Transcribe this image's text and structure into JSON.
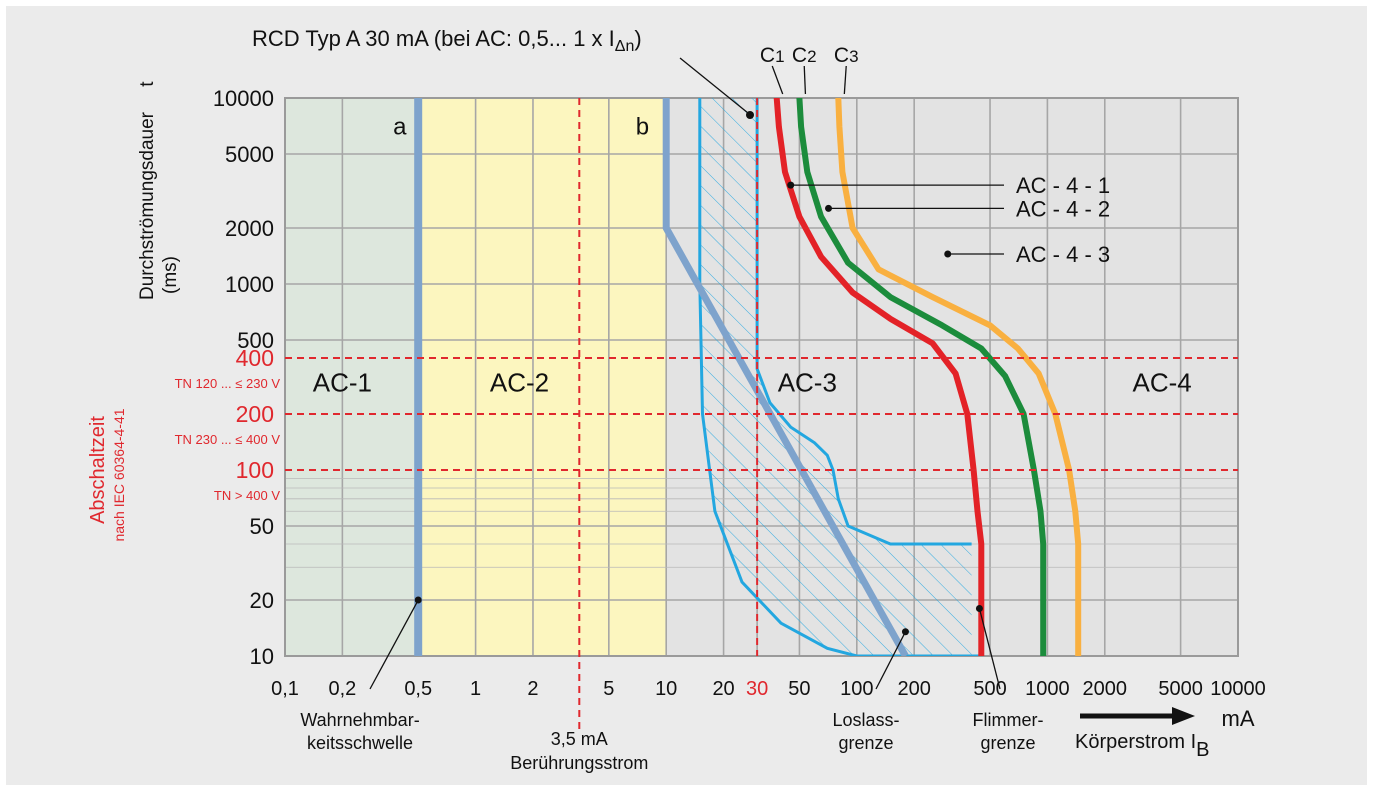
{
  "chart_data": {
    "type": "line",
    "title": "RCD Typ A 30 mA (bei AC: 0,5... 1 x I",
    "title_sub": "Δn",
    "title_end": ")",
    "ylabel_main": "Durchströmungsdauer",
    "ylabel_t": "t",
    "ylabel_unit": "(ms)",
    "xlabel_unit": "mA",
    "xlabel_main": "Körperstrom I",
    "xlabel_sub": "B",
    "x_scale": "log",
    "y_scale": "log",
    "xlim": [
      0.1,
      10000
    ],
    "ylim": [
      10,
      10000
    ],
    "x_ticks": [
      {
        "v": 0.1,
        "label": "0,1"
      },
      {
        "v": 0.2,
        "label": "0,2"
      },
      {
        "v": 0.5,
        "label": "0,5"
      },
      {
        "v": 1,
        "label": "1"
      },
      {
        "v": 2,
        "label": "2"
      },
      {
        "v": 5,
        "label": "5"
      },
      {
        "v": 10,
        "label": "10"
      },
      {
        "v": 20,
        "label": "20"
      },
      {
        "v": 30,
        "label": "30",
        "highlight": true
      },
      {
        "v": 50,
        "label": "50"
      },
      {
        "v": 100,
        "label": "100"
      },
      {
        "v": 200,
        "label": "200"
      },
      {
        "v": 500,
        "label": "500"
      },
      {
        "v": 1000,
        "label": "1000"
      },
      {
        "v": 2000,
        "label": "2000"
      },
      {
        "v": 5000,
        "label": "5000"
      },
      {
        "v": 10000,
        "label": "10000"
      }
    ],
    "y_ticks": [
      {
        "v": 10,
        "label": "10"
      },
      {
        "v": 20,
        "label": "20"
      },
      {
        "v": 50,
        "label": "50"
      },
      {
        "v": 100,
        "label": "100",
        "highlight": true
      },
      {
        "v": 200,
        "label": "200",
        "highlight": true
      },
      {
        "v": 400,
        "label": "400",
        "highlight": true
      },
      {
        "v": 500,
        "label": "500"
      },
      {
        "v": 1000,
        "label": "1000"
      },
      {
        "v": 2000,
        "label": "2000"
      },
      {
        "v": 5000,
        "label": "5000"
      },
      {
        "v": 10000,
        "label": "10000"
      }
    ],
    "regions": [
      {
        "label": "AC-1",
        "x_from": 0.1,
        "x_to": 0.5,
        "color": "#dde7dd",
        "label_x": 0.2,
        "label_y": 300
      },
      {
        "label": "AC-2",
        "x_from": 0.5,
        "x_to": 10,
        "color": "#fcf6bf",
        "label_x": 1.7,
        "label_y": 300
      },
      {
        "label": "AC-3",
        "label_x": 55,
        "label_y": 300
      },
      {
        "label": "AC-4",
        "label_x": 4000,
        "label_y": 300
      }
    ],
    "zone_letters": [
      {
        "label": "a",
        "x": 0.4,
        "y": 7200
      },
      {
        "label": "b",
        "x": 7.5,
        "y": 7200
      }
    ],
    "colors": {
      "boundary": "#7ea3cc",
      "c1": "#e32227",
      "c2": "#1c8c3c",
      "c3": "#f9b040",
      "rcd": "#23a7e0",
      "red_ref": "#e0282e"
    },
    "series": [
      {
        "key": "a",
        "x": [
          0.5,
          0.5
        ],
        "y": [
          10000,
          10
        ]
      },
      {
        "key": "b",
        "x": [
          10,
          10,
          180
        ],
        "y": [
          10000,
          2000,
          10
        ]
      },
      {
        "key": "C1",
        "name": "C1",
        "x": [
          38,
          39,
          42,
          50,
          65,
          95,
          150,
          250,
          330,
          380,
          410,
          430,
          450,
          450
        ],
        "y": [
          10000,
          7000,
          4000,
          2300,
          1400,
          900,
          650,
          480,
          330,
          200,
          100,
          60,
          40,
          10
        ]
      },
      {
        "key": "C2",
        "name": "C2",
        "x": [
          50,
          51,
          55,
          65,
          90,
          150,
          280,
          450,
          600,
          750,
          850,
          920,
          950,
          950
        ],
        "y": [
          10000,
          7000,
          4000,
          2300,
          1300,
          850,
          600,
          450,
          320,
          200,
          100,
          60,
          40,
          10
        ]
      },
      {
        "key": "C3",
        "name": "C3",
        "x": [
          80,
          81,
          84,
          95,
          130,
          250,
          500,
          700,
          900,
          1100,
          1300,
          1400,
          1450,
          1450
        ],
        "y": [
          10000,
          7000,
          4000,
          2000,
          1200,
          850,
          600,
          450,
          330,
          200,
          100,
          60,
          40,
          10
        ]
      },
      {
        "key": "rcd_left",
        "x": [
          15,
          15,
          15.5,
          18,
          25,
          40,
          70,
          100
        ],
        "y": [
          10000,
          1000,
          200,
          60,
          25,
          15,
          11,
          10
        ]
      },
      {
        "key": "rcd_right",
        "x": [
          30,
          30,
          35,
          45,
          60,
          70,
          75,
          80,
          90,
          150,
          400
        ],
        "y": [
          10000,
          350,
          230,
          170,
          140,
          120,
          100,
          70,
          50,
          40,
          40
        ]
      },
      {
        "key": "rcd_bottom",
        "x": [
          100,
          200,
          400,
          450
        ],
        "y": [
          10,
          10,
          10,
          10
        ]
      }
    ],
    "curve_labels": [
      {
        "label": "C",
        "sub": "1",
        "x": 36,
        "y": 16000
      },
      {
        "label": "C",
        "sub": "2",
        "x": 53,
        "y": 16000
      },
      {
        "label": "C",
        "sub": "3",
        "x": 88,
        "y": 16000
      }
    ],
    "ac4_labels": [
      {
        "text": "AC - 4 - 1",
        "x": 1900,
        "y": 3400
      },
      {
        "text": "AC - 4 - 2",
        "x": 1900,
        "y": 2550
      },
      {
        "text": "AC - 4 - 3",
        "x": 1900,
        "y": 1450
      }
    ],
    "ref_lines": [
      {
        "y": 400,
        "note": "TN 120 ... ≤ 230 V"
      },
      {
        "y": 200,
        "note": "TN 230 ... ≤ 400 V"
      },
      {
        "y": 100,
        "note": "TN > 400 V"
      }
    ],
    "vref_label": "3,5 mA",
    "vref_label2": "Berührungsstrom",
    "vref_x": 3.5,
    "rcd_vline_x": 30,
    "abschalt_label": "Abschaltzeit",
    "abschalt_sub": "nach IEC 60364-4-41",
    "bottom_labels": [
      {
        "line1": "Wahrnehmbar-",
        "line2": "keitsschwelle"
      },
      {
        "line1": "Loslass-",
        "line2": "grenze"
      },
      {
        "line1": "Flimmer-",
        "line2": "grenze"
      }
    ]
  }
}
